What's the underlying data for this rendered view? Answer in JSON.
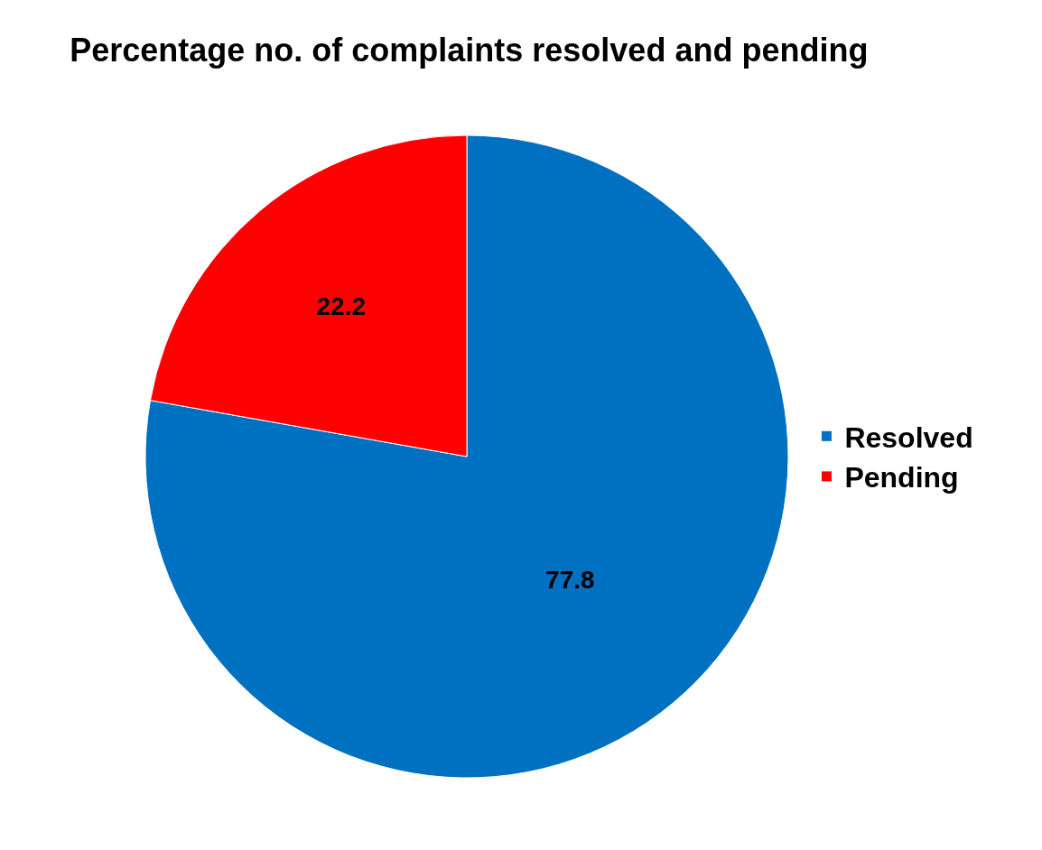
{
  "chart_data": {
    "type": "pie",
    "title": "Percentage no. of complaints resolved and pending",
    "categories": [
      "Resolved",
      "Pending"
    ],
    "values": [
      77.8,
      22.2
    ],
    "colors": [
      "#0070c0",
      "#ff0000"
    ],
    "data_labels": true,
    "legend": "right"
  }
}
